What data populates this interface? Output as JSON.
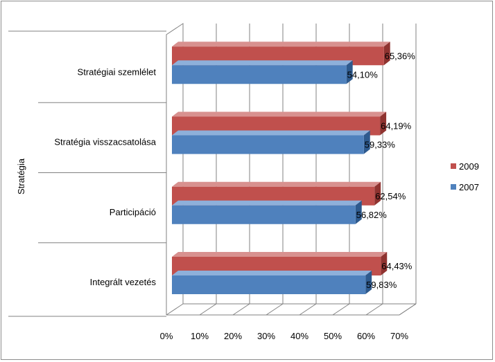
{
  "chart_data": {
    "type": "bar",
    "orientation": "horizontal",
    "style": "3d-clustered",
    "categories": [
      "Integrált vezetés",
      "Participáció",
      "Stratégia visszacsatolása",
      "Stratégiai szemlélet"
    ],
    "series": [
      {
        "name": "2009",
        "values": [
          64.43,
          62.54,
          64.19,
          65.36
        ],
        "labels": [
          "64,43%",
          "62,54%",
          "64,19%",
          "65,36%"
        ],
        "color": "#c0504d",
        "top_color": "#d8918f",
        "side_color": "#8f3330"
      },
      {
        "name": "2007",
        "values": [
          59.83,
          56.82,
          59.33,
          54.1
        ],
        "labels": [
          "59,83%",
          "56,82%",
          "59,33%",
          "54,10%"
        ],
        "color": "#4f81bd",
        "top_color": "#8eb0da",
        "side_color": "#2e5a8e"
      }
    ],
    "ylabel": "Stratégia",
    "xlim": [
      0,
      70
    ],
    "xticks": [
      "0%",
      "10%",
      "20%",
      "30%",
      "40%",
      "50%",
      "60%",
      "70%"
    ],
    "grid": true,
    "legend_position": "right"
  }
}
